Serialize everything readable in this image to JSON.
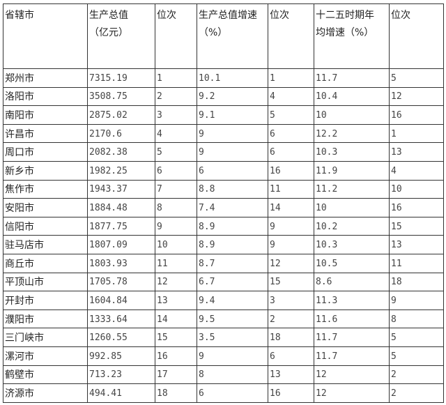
{
  "table": {
    "headers": [
      [
        "省辖市"
      ],
      [
        "生产总值",
        "（亿元）"
      ],
      [
        "位次"
      ],
      [
        "生产总值增速",
        "（%）"
      ],
      [
        "位次"
      ],
      [
        "十二五时期年",
        "均增速（%）"
      ],
      [
        "位次"
      ]
    ],
    "rows": [
      [
        "郑州市",
        "7315.19",
        "1",
        "10.1",
        "1",
        "11.7",
        "5"
      ],
      [
        "洛阳市",
        "3508.75",
        "2",
        "9.2",
        "4",
        "10.4",
        "12"
      ],
      [
        "南阳市",
        "2875.02",
        "3",
        "9.1",
        "5",
        "10",
        "16"
      ],
      [
        "许昌市",
        "2170.6",
        "4",
        "9",
        "6",
        "12.2",
        "1"
      ],
      [
        "周口市",
        "2082.38",
        "5",
        "9",
        "6",
        "10.3",
        "13"
      ],
      [
        "新乡市",
        "1982.25",
        "6",
        "6",
        "16",
        "11.9",
        "4"
      ],
      [
        "焦作市",
        "1943.37",
        "7",
        "8.8",
        "11",
        "11.2",
        "10"
      ],
      [
        "安阳市",
        "1884.48",
        "8",
        "7.4",
        "14",
        "10",
        "16"
      ],
      [
        "信阳市",
        "1877.75",
        "9",
        "8.9",
        "9",
        "10.2",
        "15"
      ],
      [
        "驻马店市",
        "1807.09",
        "10",
        "8.9",
        "9",
        "10.3",
        "13"
      ],
      [
        "商丘市",
        "1803.93",
        "11",
        "8.7",
        "12",
        "10.5",
        "11"
      ],
      [
        "平顶山市",
        "1705.78",
        "12",
        "6.7",
        "15",
        "8.6",
        "18"
      ],
      [
        "开封市",
        "1604.84",
        "13",
        "9.4",
        "3",
        "11.3",
        "9"
      ],
      [
        "濮阳市",
        "1333.64",
        "14",
        "9.5",
        "2",
        "11.6",
        "8"
      ],
      [
        "三门峡市",
        "1260.55",
        "15",
        "3.5",
        "18",
        "11.7",
        "5"
      ],
      [
        "漯河市",
        "992.85",
        "16",
        "9",
        "6",
        "11.7",
        "5"
      ],
      [
        "鹤壁市",
        "713.23",
        "17",
        "8",
        "13",
        "12",
        "2"
      ],
      [
        "济源市",
        "494.41",
        "18",
        "6",
        "16",
        "12",
        "2"
      ]
    ]
  }
}
